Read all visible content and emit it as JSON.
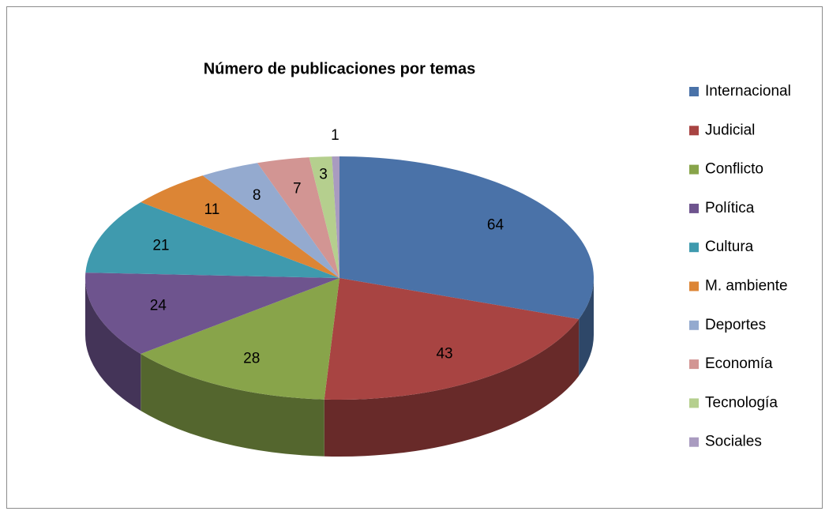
{
  "chart_data": {
    "type": "pie",
    "title": "Número de publicaciones por temas",
    "categories": [
      "Internacional",
      "Judicial",
      "Conflicto",
      "Política",
      "Cultura",
      "M. ambiente",
      "Deportes",
      "Economía",
      "Tecnología",
      "Sociales"
    ],
    "values": [
      64,
      43,
      28,
      24,
      21,
      11,
      8,
      7,
      3,
      1
    ],
    "colors": [
      "#4a72a8",
      "#a84442",
      "#88a44a",
      "#6e548e",
      "#3f9aae",
      "#dc8535",
      "#94aacf",
      "#d29593",
      "#b5cf8e",
      "#a99bc0"
    ],
    "legend": "right",
    "3d": true
  }
}
